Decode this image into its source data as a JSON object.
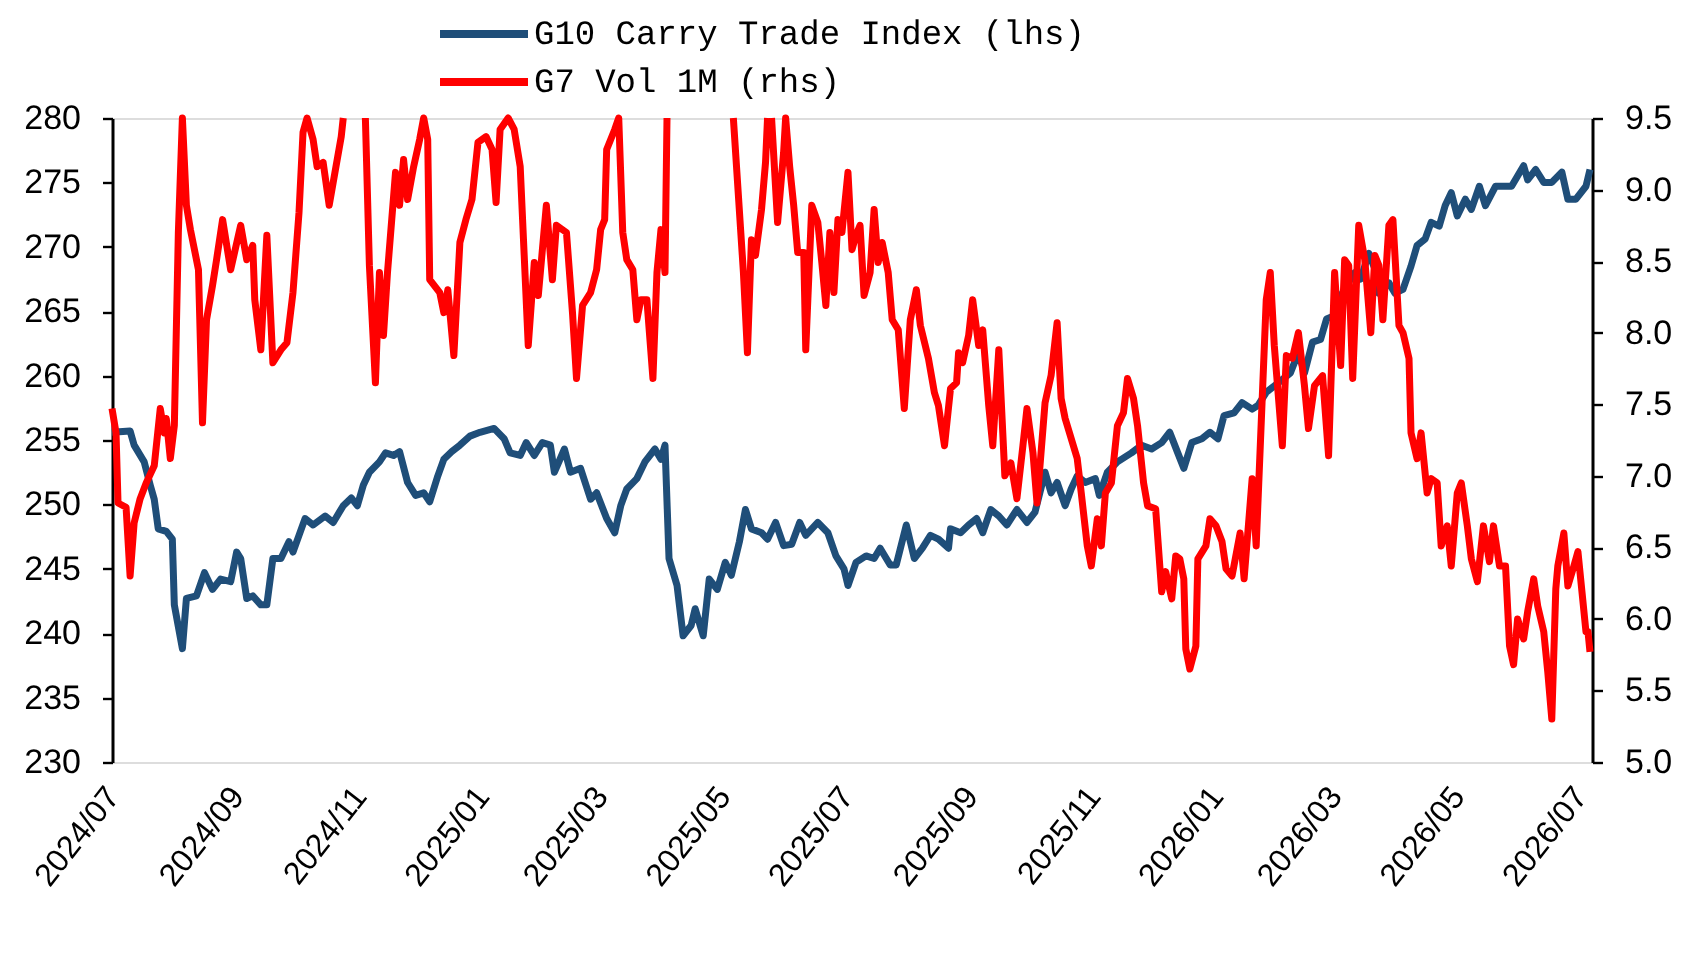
{
  "chart_data": {
    "type": "line",
    "legend": "top",
    "xlim": [
      "2024-07-01",
      "2026-07-07"
    ],
    "xticks": [
      {
        "value": "2024-07-01",
        "label": "2024/07"
      },
      {
        "value": "2024-09-01",
        "label": "2024/09"
      },
      {
        "value": "2024-11-01",
        "label": "2024/11"
      },
      {
        "value": "2025-01-01",
        "label": "2025/01"
      },
      {
        "value": "2025-03-01",
        "label": "2025/03"
      },
      {
        "value": "2025-05-01",
        "label": "2025/05"
      },
      {
        "value": "2025-07-01",
        "label": "2025/07"
      },
      {
        "value": "2025-09-01",
        "label": "2025/09"
      },
      {
        "value": "2025-11-01",
        "label": "2025/11"
      },
      {
        "value": "2026-01-01",
        "label": "2026/01"
      },
      {
        "value": "2026-03-01",
        "label": "2026/03"
      },
      {
        "value": "2026-05-01",
        "label": "2026/05"
      },
      {
        "value": "2026-07-01",
        "label": "2026/07"
      }
    ],
    "ylim": [
      230,
      280
    ],
    "yticks": [
      230,
      235,
      240,
      245,
      250,
      255,
      260,
      265,
      270,
      275,
      280
    ],
    "y2lim": [
      5,
      9.5
    ],
    "y2ticks": [
      {
        "value": 5,
        "label": "5.0"
      },
      5.5,
      {
        "value": 6,
        "label": "6.0"
      },
      6.5,
      {
        "value": 7,
        "label": "7.0"
      },
      7.5,
      {
        "value": 8,
        "label": "8.0"
      },
      8.5,
      {
        "value": 9,
        "label": "9.0"
      },
      9.5
    ],
    "series": [
      {
        "name": "G10 Carry Trade Index (lhs)",
        "color": "#1f4e79",
        "x": [
          "2024-07-01",
          "2024-07-10",
          "2024-07-12",
          "2024-07-17",
          "2024-07-20",
          "2024-07-22",
          "2024-07-24",
          "2024-07-28",
          "2024-07-31",
          "2024-08-01",
          "2024-08-05",
          "2024-08-07",
          "2024-08-12",
          "2024-08-16",
          "2024-08-20",
          "2024-08-24",
          "2024-08-29",
          "2024-09-01",
          "2024-09-03",
          "2024-09-06",
          "2024-09-09",
          "2024-09-13",
          "2024-09-16",
          "2024-09-19",
          "2024-09-23",
          "2024-09-27",
          "2024-09-29",
          "2024-10-02",
          "2024-10-05",
          "2024-10-09",
          "2024-10-15",
          "2024-10-19",
          "2024-10-24",
          "2024-10-28",
          "2024-10-31",
          "2024-11-03",
          "2024-11-06",
          "2024-11-11",
          "2024-11-14",
          "2024-11-18",
          "2024-11-21",
          "2024-11-25",
          "2024-11-29",
          "2024-12-03",
          "2024-12-06",
          "2024-12-10",
          "2024-12-13",
          "2024-12-17",
          "2024-12-21",
          "2024-12-26",
          "2024-12-31",
          "2025-01-07",
          "2025-01-12",
          "2025-01-15",
          "2025-01-20",
          "2025-01-23",
          "2025-01-27",
          "2025-01-31",
          "2025-02-04",
          "2025-02-06",
          "2025-02-11",
          "2025-02-14",
          "2025-02-19",
          "2025-02-24",
          "2025-02-27",
          "2025-03-04",
          "2025-03-08",
          "2025-03-11",
          "2025-03-14",
          "2025-03-19",
          "2025-03-23",
          "2025-03-28",
          "2025-03-31",
          "2025-04-02",
          "2025-04-04",
          "2025-04-08",
          "2025-04-11",
          "2025-04-15",
          "2025-04-17",
          "2025-04-21",
          "2025-04-24",
          "2025-04-28",
          "2025-05-02",
          "2025-05-05",
          "2025-05-09",
          "2025-05-12",
          "2025-05-15",
          "2025-05-20",
          "2025-05-23",
          "2025-05-27",
          "2025-05-31",
          "2025-06-04",
          "2025-06-08",
          "2025-06-11",
          "2025-06-17",
          "2025-06-22",
          "2025-06-26",
          "2025-06-30",
          "2025-07-02",
          "2025-07-06",
          "2025-07-11",
          "2025-07-15",
          "2025-07-18",
          "2025-07-23",
          "2025-07-26",
          "2025-07-31",
          "2025-08-04",
          "2025-08-08",
          "2025-08-12",
          "2025-08-16",
          "2025-08-21",
          "2025-08-22",
          "2025-08-27",
          "2025-08-31",
          "2025-09-04",
          "2025-09-07",
          "2025-09-11",
          "2025-09-15",
          "2025-09-19",
          "2025-09-24",
          "2025-09-29",
          "2025-10-03",
          "2025-10-08",
          "2025-10-11",
          "2025-10-14",
          "2025-10-18",
          "2025-10-21",
          "2025-10-24",
          "2025-10-28",
          "2025-11-02",
          "2025-11-04",
          "2025-11-08",
          "2025-11-13",
          "2025-11-20",
          "2025-11-25",
          "2025-11-30",
          "2025-12-05",
          "2025-12-09",
          "2025-12-13",
          "2025-12-16",
          "2025-12-20",
          "2025-12-25",
          "2025-12-29",
          "2026-01-02",
          "2026-01-05",
          "2026-01-10",
          "2026-01-14",
          "2026-01-19",
          "2026-01-22",
          "2026-01-26",
          "2026-01-30",
          "2026-02-03",
          "2026-02-07",
          "2026-02-11",
          "2026-02-14",
          "2026-02-18",
          "2026-02-22",
          "2026-02-25",
          "2026-02-28",
          "2026-03-03",
          "2026-03-07",
          "2026-03-11",
          "2026-03-14",
          "2026-03-18",
          "2026-03-21",
          "2026-03-23",
          "2026-03-28",
          "2026-03-31",
          "2026-04-04",
          "2026-04-08",
          "2026-04-11",
          "2026-04-15",
          "2026-04-18",
          "2026-04-22",
          "2026-04-25",
          "2026-04-28",
          "2026-05-01",
          "2026-05-05",
          "2026-05-08",
          "2026-05-12",
          "2026-05-15",
          "2026-05-20",
          "2026-05-24",
          "2026-05-28",
          "2026-05-31",
          "2026-06-03",
          "2026-06-05",
          "2026-06-09",
          "2026-06-13",
          "2026-06-17",
          "2026-06-22",
          "2026-06-25",
          "2026-06-29",
          "2026-07-04",
          "2026-07-06"
        ],
        "values": [
          255.6,
          255.7,
          254.6,
          253.3,
          251.5,
          250.4,
          248.1,
          247.9,
          247.3,
          242.2,
          238.8,
          242.7,
          242.9,
          244.7,
          243.4,
          244.2,
          244.0,
          246.3,
          245.8,
          242.7,
          242.9,
          242.2,
          242.2,
          245.8,
          245.8,
          247.1,
          246.3,
          247.6,
          248.9,
          248.4,
          249.1,
          248.6,
          249.9,
          250.5,
          249.9,
          251.5,
          252.5,
          253.3,
          254.0,
          253.8,
          254.1,
          251.7,
          250.7,
          250.9,
          250.2,
          252.2,
          253.5,
          254.1,
          254.6,
          255.3,
          255.6,
          255.9,
          255.1,
          254.0,
          253.8,
          254.8,
          253.8,
          254.8,
          254.6,
          252.5,
          254.3,
          252.5,
          252.8,
          250.4,
          250.9,
          248.9,
          247.8,
          249.9,
          251.2,
          252.0,
          253.3,
          254.3,
          253.5,
          254.6,
          245.8,
          243.7,
          239.8,
          240.6,
          241.9,
          239.8,
          244.2,
          243.4,
          245.5,
          244.5,
          247.1,
          249.6,
          248.1,
          247.8,
          247.3,
          248.6,
          246.8,
          246.9,
          248.6,
          247.6,
          248.6,
          247.8,
          246.0,
          245.0,
          243.7,
          245.5,
          246.0,
          245.8,
          246.6,
          245.3,
          245.3,
          248.4,
          245.8,
          246.6,
          247.6,
          247.3,
          246.6,
          248.1,
          247.8,
          248.4,
          248.9,
          247.8,
          249.6,
          249.1,
          248.4,
          249.6,
          248.6,
          249.4,
          252.5,
          250.9,
          251.7,
          249.9,
          251.2,
          252.2,
          251.7,
          252.0,
          250.7,
          252.5,
          253.3,
          254.0,
          254.6,
          254.3,
          254.8,
          255.6,
          254.0,
          252.8,
          254.8,
          255.1,
          255.6,
          255.1,
          256.9,
          257.1,
          257.9,
          257.4,
          257.7,
          258.7,
          259.2,
          259.7,
          260.2,
          261.8,
          260.2,
          262.6,
          262.8,
          264.4,
          264.6,
          265.9,
          267.0,
          268.0,
          267.5,
          269.5,
          268.3,
          266.4,
          267.2,
          266.4,
          266.7,
          268.5,
          270.1,
          270.6,
          271.9,
          271.6,
          273.2,
          274.2,
          272.4,
          273.7,
          272.9,
          274.7,
          273.2,
          274.7,
          274.7,
          274.7,
          275.5,
          276.3,
          275.2,
          276.0,
          275.0,
          275.0,
          275.8,
          273.7,
          273.7,
          274.7,
          276.0
        ]
      },
      {
        "name": "G7 Vol 1M (rhs)",
        "color": "#ff0000",
        "axis": "y2",
        "x": [
          "2024-07-01",
          "2024-07-03",
          "2024-07-04",
          "2024-07-08",
          "2024-07-10",
          "2024-07-12",
          "2024-07-15",
          "2024-07-18",
          "2024-07-22",
          "2024-07-25",
          "2024-07-27",
          "2024-07-28",
          "2024-07-30",
          "2024-08-01",
          "2024-08-03",
          "2024-08-05",
          "2024-08-07",
          "2024-08-09",
          "2024-08-13",
          "2024-08-15",
          "2024-08-17",
          "2024-08-20",
          "2024-08-22",
          "2024-08-25",
          "2024-08-29",
          "2024-09-03",
          "2024-09-06",
          "2024-09-09",
          "2024-09-10",
          "2024-09-13",
          "2024-09-16",
          "2024-09-19",
          "2024-09-23",
          "2024-09-26",
          "2024-09-29",
          "2024-10-02",
          "2024-10-04",
          "2024-10-06",
          "2024-10-09",
          "2024-10-11",
          "2024-10-14",
          "2024-10-17",
          "2024-10-19",
          "2024-10-23",
          "2024-10-24",
          "2024-10-29",
          "2024-11-04",
          "2024-11-06",
          "2024-11-09",
          "2024-11-11",
          "2024-11-13",
          "2024-11-15",
          "2024-11-19",
          "2024-11-21",
          "2024-11-23",
          "2024-11-25",
          "2024-11-28",
          "2024-12-01",
          "2024-12-03",
          "2024-12-05",
          "2024-12-06",
          "2024-12-11",
          "2024-12-13",
          "2024-12-15",
          "2024-12-18",
          "2024-12-21",
          "2024-12-24",
          "2024-12-27",
          "2024-12-30",
          "2025-01-03",
          "2025-01-06",
          "2025-01-08",
          "2025-01-10",
          "2025-01-14",
          "2025-01-17",
          "2025-01-20",
          "2025-01-24",
          "2025-01-27",
          "2025-01-29",
          "2025-02-02",
          "2025-02-05",
          "2025-02-07",
          "2025-02-12",
          "2025-02-15",
          "2025-02-17",
          "2025-02-20",
          "2025-02-24",
          "2025-02-27",
          "2025-03-01",
          "2025-03-03",
          "2025-03-04",
          "2025-03-08",
          "2025-03-10",
          "2025-03-12",
          "2025-03-14",
          "2025-03-17",
          "2025-03-19",
          "2025-03-21",
          "2025-03-24",
          "2025-03-27",
          "2025-03-29",
          "2025-03-31",
          "2025-04-02",
          "2025-04-03",
          "2025-04-20",
          "2025-05-06",
          "2025-05-11",
          "2025-05-13",
          "2025-05-15",
          "2025-05-17",
          "2025-05-20",
          "2025-05-22",
          "2025-05-23",
          "2025-05-24",
          "2025-05-25",
          "2025-05-28",
          "2025-05-31",
          "2025-06-01",
          "2025-06-03",
          "2025-06-05",
          "2025-06-07",
          "2025-06-10",
          "2025-06-11",
          "2025-06-14",
          "2025-06-17",
          "2025-06-19",
          "2025-06-21",
          "2025-06-23",
          "2025-06-25",
          "2025-06-27",
          "2025-06-29",
          "2025-07-02",
          "2025-07-04",
          "2025-07-06",
          "2025-07-08",
          "2025-07-10",
          "2025-07-13",
          "2025-07-15",
          "2025-07-17",
          "2025-07-19",
          "2025-07-22",
          "2025-07-24",
          "2025-07-27",
          "2025-07-30",
          "2025-08-02",
          "2025-08-05",
          "2025-08-07",
          "2025-08-11",
          "2025-08-14",
          "2025-08-16",
          "2025-08-19",
          "2025-08-22",
          "2025-08-25",
          "2025-08-26",
          "2025-08-28",
          "2025-08-31",
          "2025-09-02",
          "2025-09-05",
          "2025-09-07",
          "2025-09-10",
          "2025-09-12",
          "2025-09-15",
          "2025-09-18",
          "2025-09-21",
          "2025-09-24",
          "2025-09-27",
          "2025-09-29",
          "2025-10-02",
          "2025-10-04",
          "2025-10-08",
          "2025-10-11",
          "2025-10-14",
          "2025-10-16",
          "2025-10-18",
          "2025-10-21",
          "2025-10-24",
          "2025-10-26",
          "2025-10-29",
          "2025-10-31",
          "2025-11-03",
          "2025-11-05",
          "2025-11-07",
          "2025-11-10",
          "2025-11-13",
          "2025-11-16",
          "2025-11-18",
          "2025-11-21",
          "2025-11-23",
          "2025-11-26",
          "2025-11-28",
          "2025-12-02",
          "2025-12-05",
          "2025-12-07",
          "2025-12-10",
          "2025-12-12",
          "2025-12-14",
          "2025-12-16",
          "2025-12-17",
          "2025-12-19",
          "2025-12-22",
          "2025-12-23",
          "2025-12-27",
          "2025-12-29",
          "2026-01-01",
          "2026-01-04",
          "2026-01-06",
          "2026-01-09",
          "2026-01-13",
          "2026-01-15",
          "2026-01-19",
          "2026-01-21",
          "2026-01-24",
          "2026-01-26",
          "2026-01-28",
          "2026-01-30",
          "2026-02-03",
          "2026-02-05",
          "2026-02-08",
          "2026-02-11",
          "2026-02-14",
          "2026-02-16",
          "2026-02-19",
          "2026-02-23",
          "2026-02-26",
          "2026-03-01",
          "2026-03-04",
          "2026-03-06",
          "2026-03-08",
          "2026-03-10",
          "2026-03-13",
          "2026-03-16",
          "2026-03-19",
          "2026-03-21",
          "2026-03-23",
          "2026-03-25",
          "2026-03-28",
          "2026-03-30",
          "2026-04-02",
          "2026-04-04",
          "2026-04-07",
          "2026-04-08",
          "2026-04-11",
          "2026-04-13",
          "2026-04-16",
          "2026-04-18",
          "2026-04-21",
          "2026-04-23",
          "2026-04-26",
          "2026-04-28",
          "2026-05-01",
          "2026-05-03",
          "2026-05-06",
          "2026-05-08",
          "2026-05-11",
          "2026-05-14",
          "2026-05-17",
          "2026-05-19",
          "2026-05-22",
          "2026-05-25",
          "2026-05-27",
          "2026-05-29",
          "2026-05-31",
          "2026-06-03",
          "2026-06-05",
          "2026-06-08",
          "2026-06-10",
          "2026-06-13",
          "2026-06-15",
          "2026-06-17",
          "2026-06-19",
          "2026-06-20",
          "2026-06-23",
          "2026-06-25",
          "2026-06-28",
          "2026-06-30",
          "2026-07-02",
          "2026-07-04",
          "2026-07-05",
          "2026-07-06"
        ],
        "values": [
          7.47,
          7.3,
          6.81,
          6.78,
          6.3,
          6.67,
          6.84,
          6.95,
          7.07,
          7.47,
          7.3,
          7.4,
          7.12,
          7.35,
          8.7,
          9.5,
          8.89,
          8.72,
          8.44,
          7.37,
          8.09,
          8.33,
          8.51,
          8.79,
          8.44,
          8.75,
          8.51,
          8.61,
          8.23,
          7.88,
          8.68,
          7.79,
          7.88,
          7.93,
          8.28,
          8.84,
          9.4,
          9.5,
          9.35,
          9.16,
          9.19,
          8.89,
          9.05,
          9.37,
          9.5,
          null,
          9.5,
          8.47,
          7.65,
          8.42,
          7.98,
          8.42,
          9.12,
          8.89,
          9.21,
          8.93,
          9.16,
          9.35,
          9.5,
          9.35,
          8.37,
          8.28,
          8.14,
          8.3,
          7.84,
          8.63,
          8.79,
          8.93,
          9.33,
          9.37,
          9.28,
          8.91,
          9.42,
          9.5,
          9.42,
          9.16,
          7.91,
          8.49,
          8.26,
          8.89,
          8.37,
          8.75,
          8.7,
          8.14,
          7.68,
          8.19,
          8.28,
          8.44,
          8.72,
          8.79,
          9.28,
          9.42,
          9.5,
          8.7,
          8.51,
          8.44,
          8.09,
          8.23,
          8.23,
          7.68,
          8.42,
          8.72,
          8.42,
          9.5,
          null,
          9.5,
          8.42,
          7.86,
          8.65,
          8.54,
          8.86,
          9.19,
          9.5,
          null,
          9.5,
          8.77,
          9.26,
          9.5,
          9.16,
          8.89,
          8.56,
          8.56,
          7.88,
          8.89,
          8.77,
          8.49,
          8.19,
          8.7,
          8.28,
          8.79,
          8.7,
          9.12,
          8.58,
          8.68,
          8.75,
          8.26,
          8.42,
          8.86,
          8.49,
          8.63,
          8.42,
          8.09,
          8.02,
          7.47,
          8.09,
          8.3,
          8.05,
          7.82,
          7.58,
          7.49,
          7.21,
          7.61,
          7.65,
          7.86,
          7.79,
          7.98,
          8.23,
          7.91,
          8.02,
          7.49,
          7.21,
          7.88,
          7.0,
          7.09,
          6.84,
          7.21,
          7.47,
          7.16,
          6.81,
          7.51,
          7.7,
          8.07,
          7.54,
          7.4,
          7.26,
          7.12,
          6.88,
          6.51,
          6.37,
          6.7,
          6.51,
          6.88,
          6.95,
          7.35,
          7.44,
          7.68,
          7.54,
          7.35,
          6.95,
          6.79,
          6.77,
          6.19,
          6.33,
          6.14,
          6.44,
          6.42,
          6.28,
          5.79,
          5.65,
          5.81,
          6.42,
          6.51,
          6.7,
          6.65,
          6.54,
          6.35,
          6.3,
          6.6,
          6.28,
          6.98,
          6.51,
          7.54,
          8.23,
          8.42,
          7.91,
          7.21,
          7.84,
          7.82,
          8.0,
          7.63,
          7.33,
          7.63,
          7.7,
          7.14,
          8.42,
          7.77,
          8.51,
          8.47,
          7.68,
          8.75,
          8.51,
          8.0,
          8.54,
          8.47,
          8.09,
          8.75,
          8.79,
          8.05,
          8.0,
          7.82,
          7.3,
          7.12,
          7.3,
          6.88,
          6.98,
          6.95,
          6.51,
          6.65,
          6.37,
          6.88,
          6.95,
          6.65,
          6.42,
          6.26,
          6.65,
          6.4,
          6.65,
          6.37,
          6.37,
          5.81,
          5.68,
          6.0,
          5.86,
          6.05,
          6.28,
          6.09,
          5.91,
          5.63,
          5.3,
          6.21,
          6.37,
          6.6,
          6.23,
          6.37,
          6.47,
          6.19,
          5.91,
          5.91,
          5.77
        ]
      }
    ]
  }
}
